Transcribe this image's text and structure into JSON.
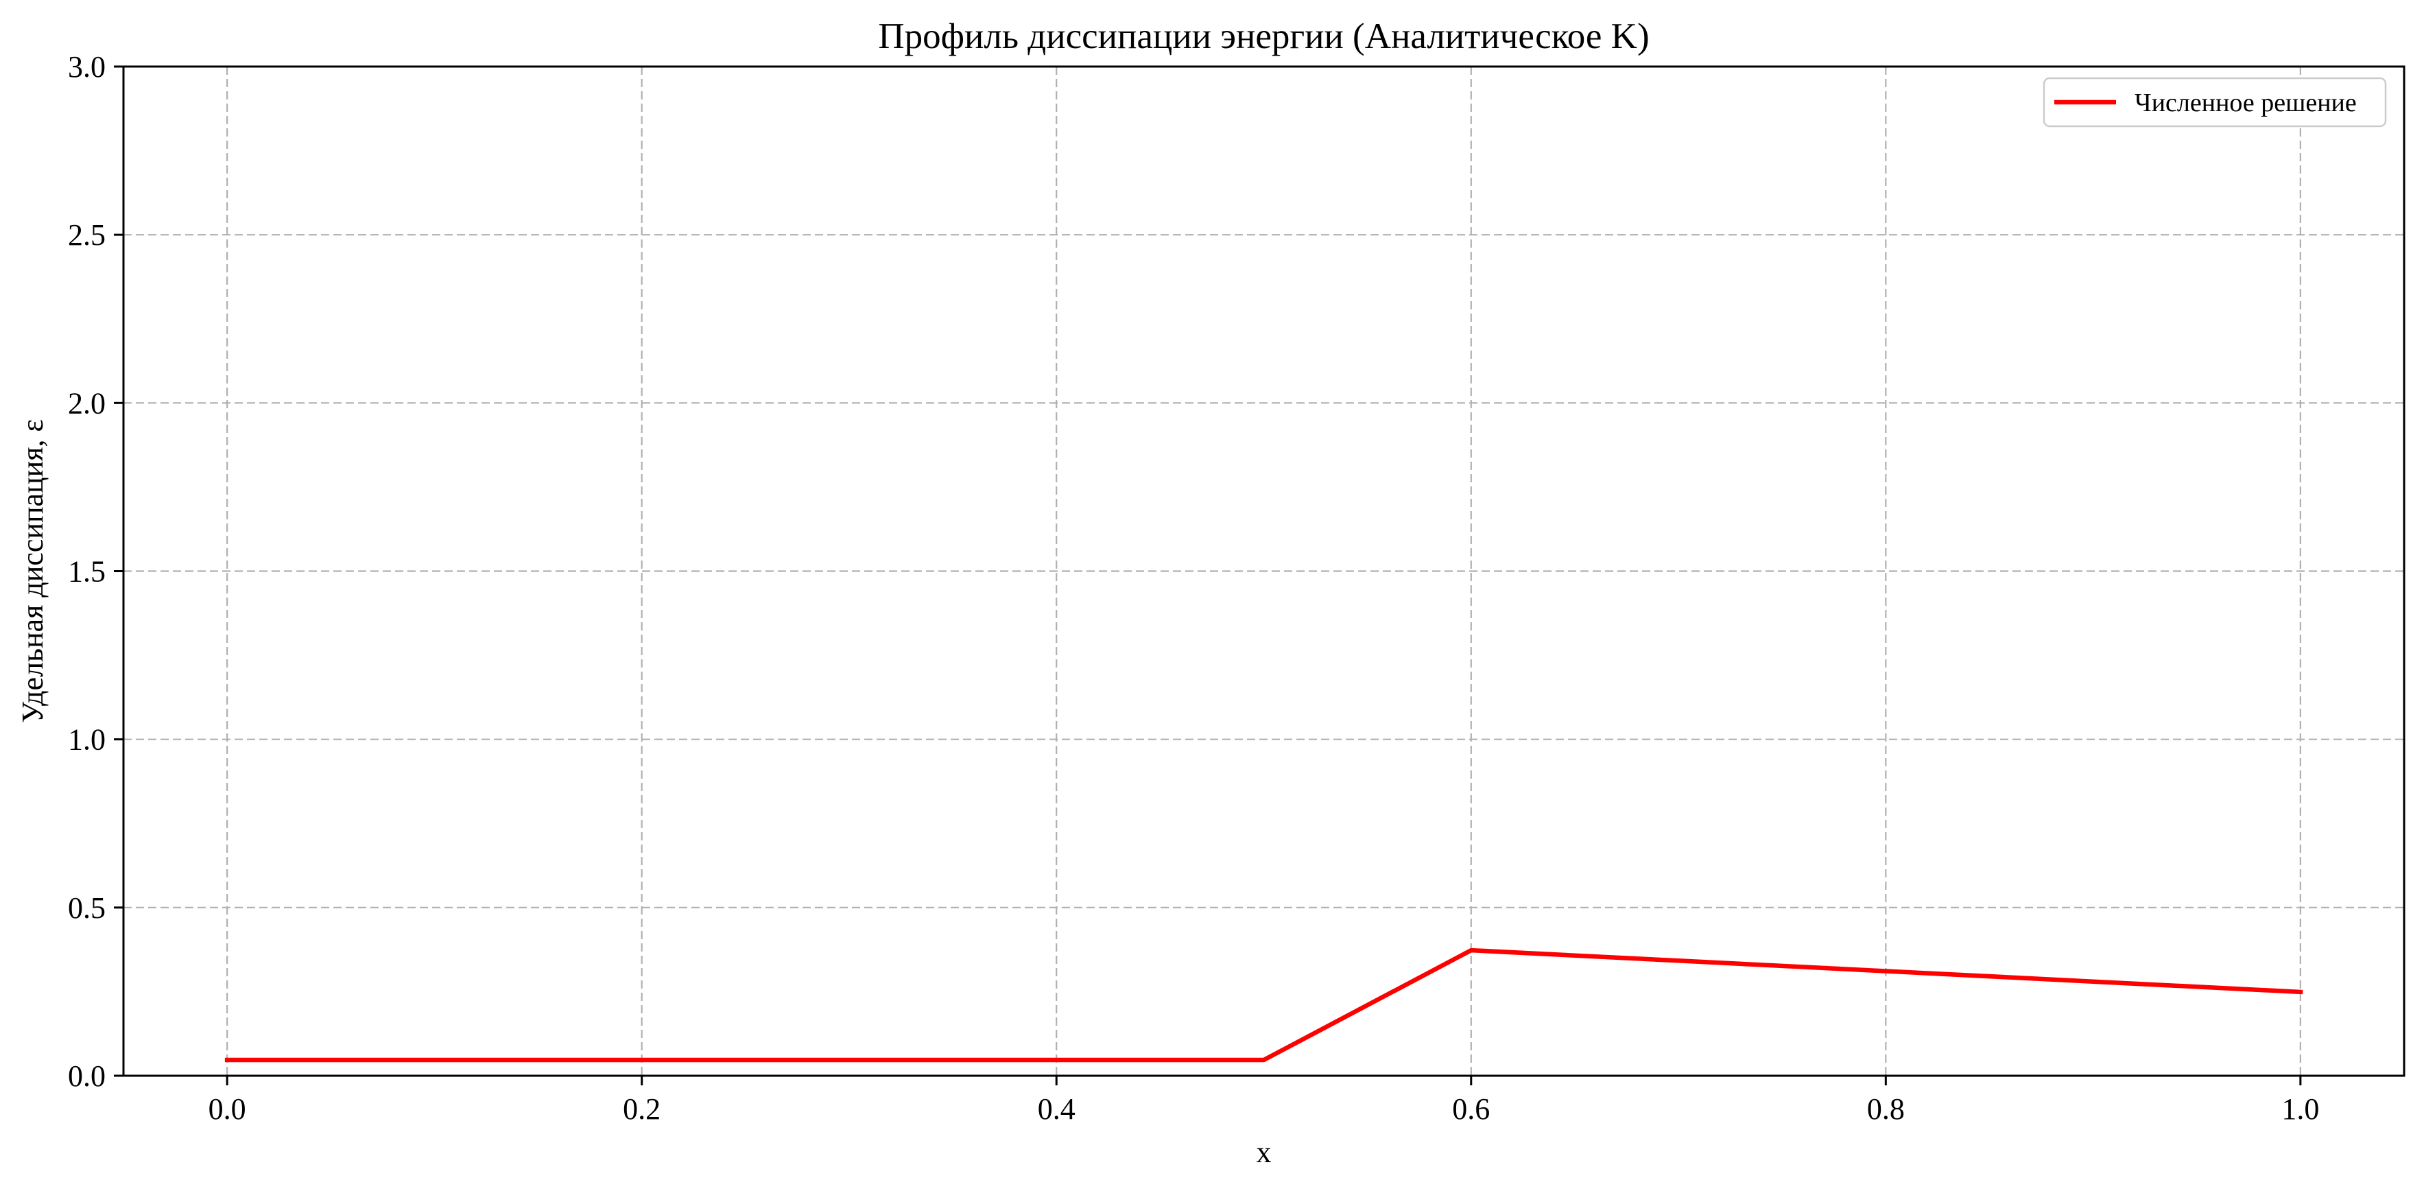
{
  "chart_data": {
    "type": "line",
    "title": "Профиль диссипации энергии (Аналитическое K)",
    "xlabel": "x",
    "ylabel": "Удельная диссипация, ε",
    "xlim": [
      -0.05,
      1.05
    ],
    "ylim": [
      0.0,
      3.0
    ],
    "xticks": [
      0.0,
      0.2,
      0.4,
      0.6,
      0.8,
      1.0
    ],
    "xtick_labels": [
      "0.0",
      "0.2",
      "0.4",
      "0.6",
      "0.8",
      "1.0"
    ],
    "yticks": [
      0.0,
      0.5,
      1.0,
      1.5,
      2.0,
      2.5,
      3.0
    ],
    "ytick_labels": [
      "0.0",
      "0.5",
      "1.0",
      "1.5",
      "2.0",
      "2.5",
      "3.0"
    ],
    "grid": true,
    "legend_position": "top-right",
    "series": [
      {
        "name": "Численное решение",
        "color": "#ff0000",
        "x": [
          0.0,
          0.1,
          0.2,
          0.3,
          0.4,
          0.5,
          0.6,
          0.7,
          0.8,
          0.9,
          1.0
        ],
        "y": [
          0.047,
          0.047,
          0.047,
          0.047,
          0.047,
          0.047,
          0.373,
          0.342,
          0.311,
          0.28,
          0.249
        ]
      }
    ]
  }
}
